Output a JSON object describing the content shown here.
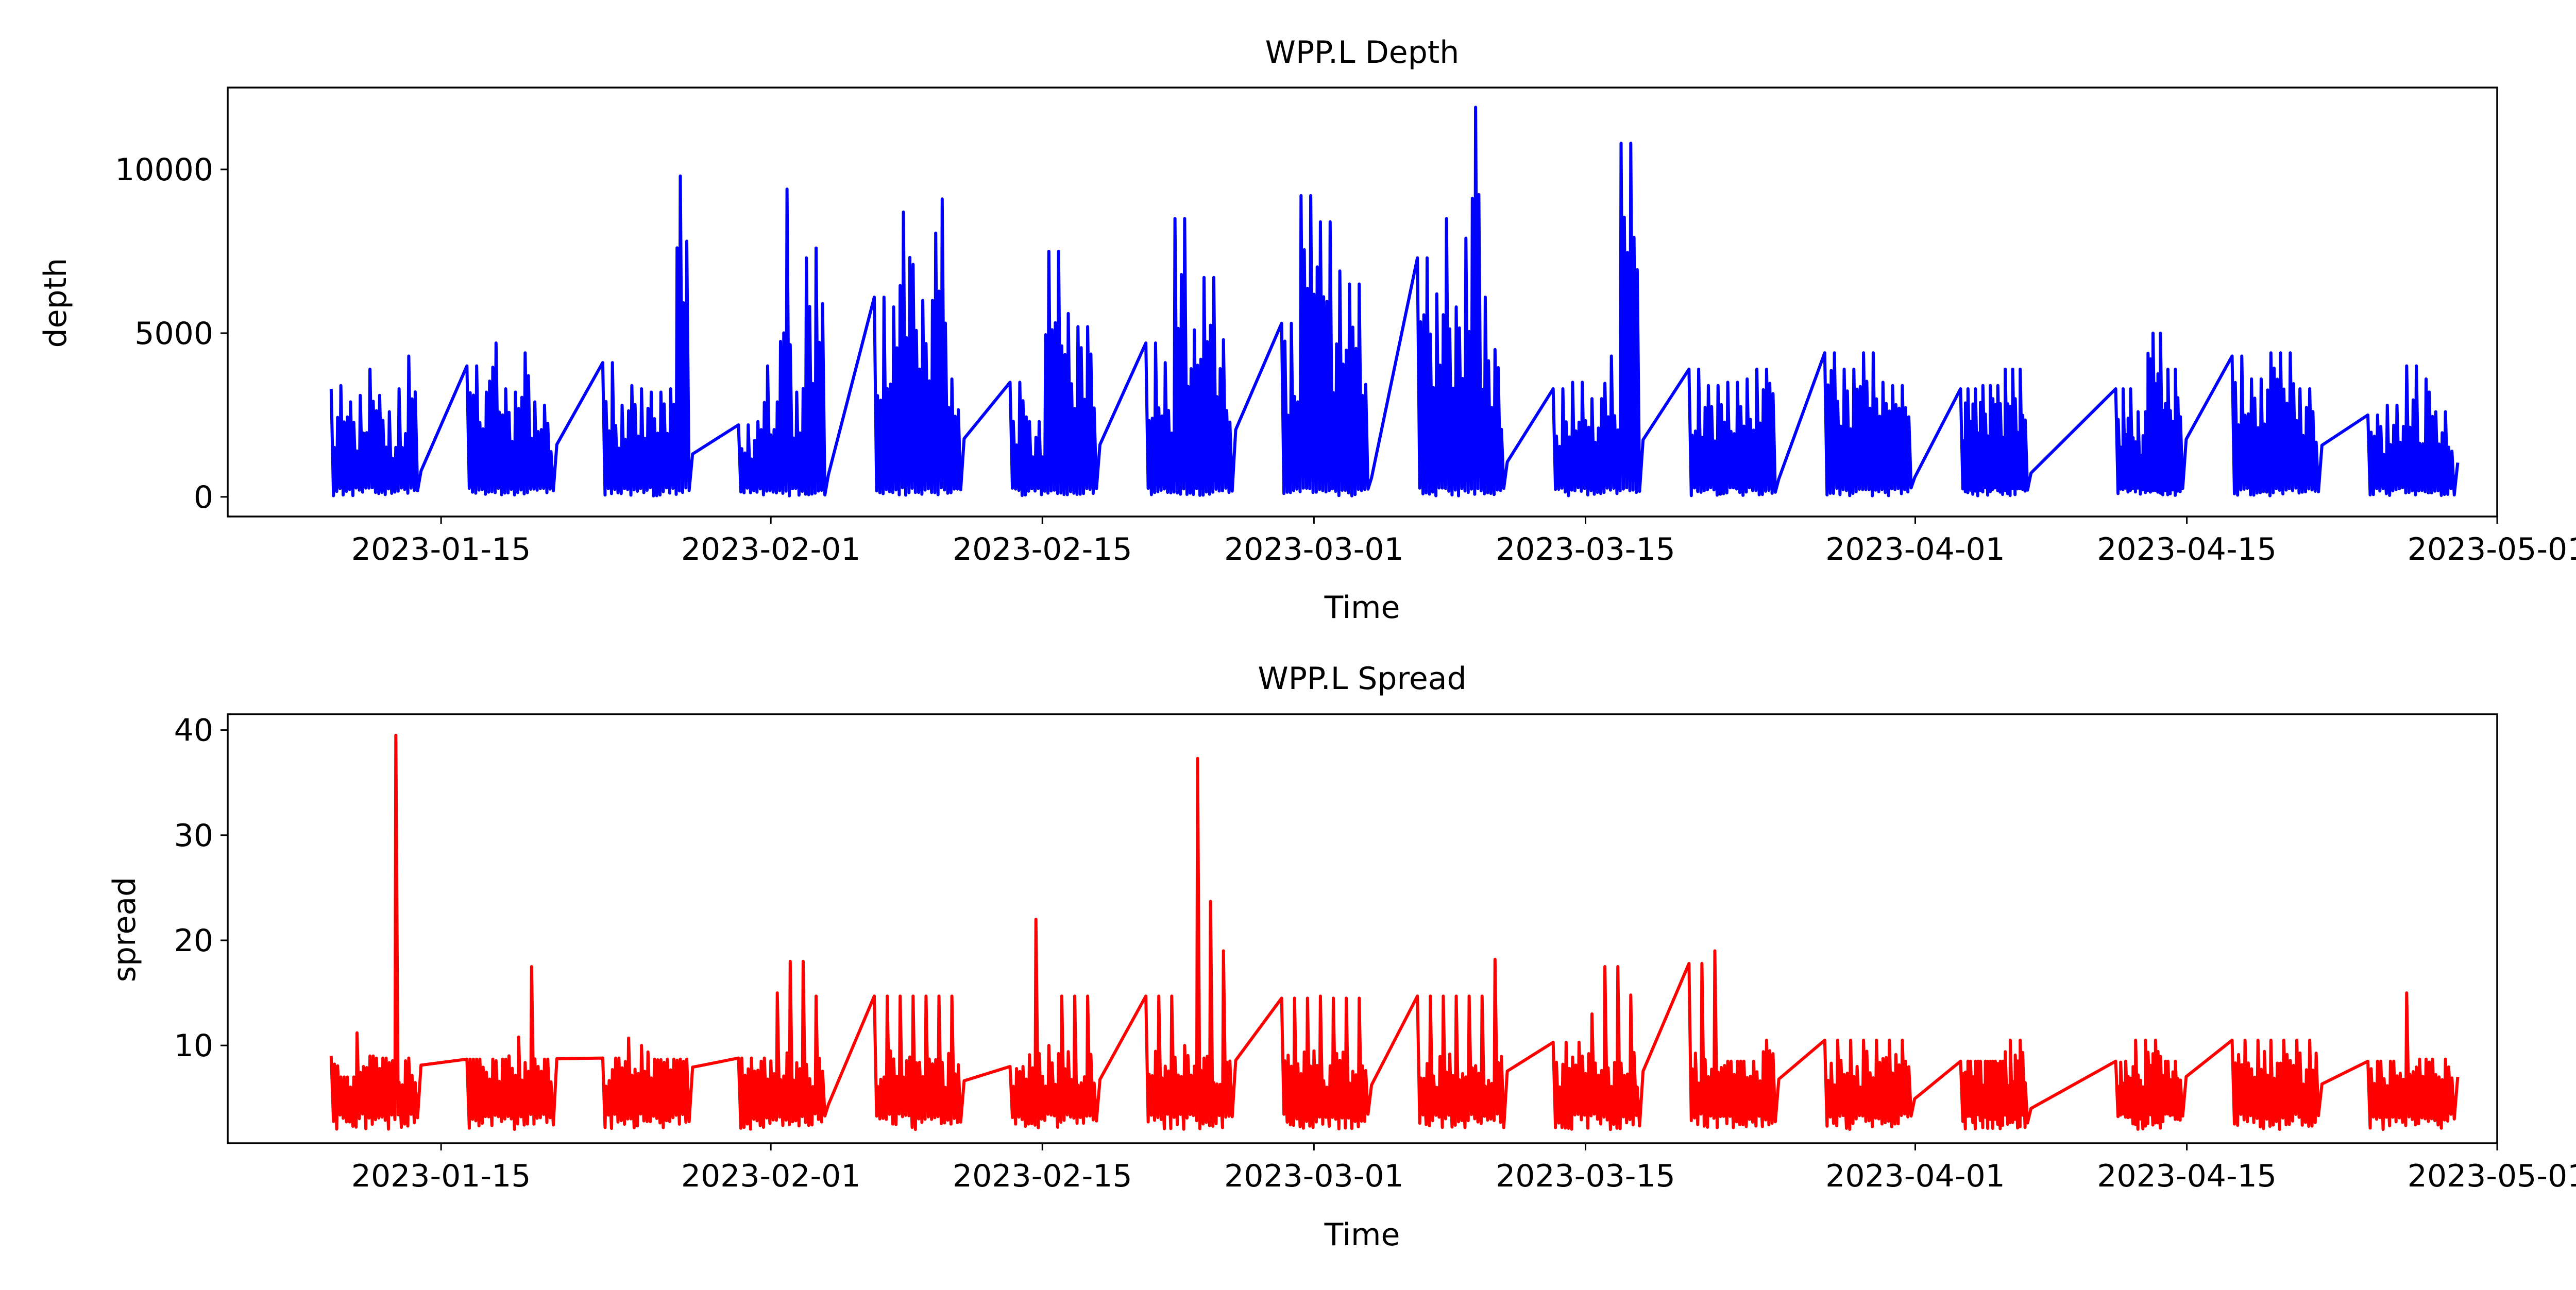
{
  "chart_data": [
    {
      "type": "line",
      "title": "WPP.L Depth",
      "xlabel": "Time",
      "ylabel": "depth",
      "color": "#0000ff",
      "xlim": [
        "2023-01-04",
        "2023-05-01"
      ],
      "ylim": [
        -600,
        12500
      ],
      "x_ticks": [
        "2023-01-15",
        "2023-02-01",
        "2023-02-15",
        "2023-03-01",
        "2023-03-15",
        "2023-04-01",
        "2023-04-15",
        "2023-05-01"
      ],
      "y_ticks": [
        0,
        5000,
        10000
      ],
      "series": [
        {
          "bursts": [
            {
              "start": "2023-01-09",
              "end": "2023-01-13",
              "peaks": [
                3300,
                3400,
                2900,
                3100,
                3900,
                3100,
                2600,
                3300,
                4300
              ]
            },
            {
              "start": "2023-01-16",
              "end": "2023-01-20",
              "peaks": [
                4000,
                3200,
                4700,
                3300,
                3200,
                4400,
                2900,
                2800
              ]
            },
            {
              "start": "2023-01-23",
              "end": "2023-01-27",
              "peaks": [
                4100,
                2800,
                3400,
                3300,
                3200,
                3300,
                9800
              ]
            },
            {
              "start": "2023-01-30",
              "end": "2023-02-03",
              "peaks": [
                2200,
                2300,
                4000,
                2900,
                9400,
                3200,
                7300,
                7600
              ]
            },
            {
              "start": "2023-02-06",
              "end": "2023-02-10",
              "peaks": [
                6100,
                5800,
                8700,
                7100,
                6000,
                9100,
                3600
              ]
            },
            {
              "start": "2023-02-13",
              "end": "2023-02-17",
              "peaks": [
                3500,
                2300,
                7500,
                5600,
                5200
              ]
            },
            {
              "start": "2023-02-20",
              "end": "2023-02-24",
              "peaks": [
                4700,
                4100,
                8500,
                5100,
                6700,
                4800
              ]
            },
            {
              "start": "2023-02-27",
              "end": "2023-03-03",
              "peaks": [
                5300,
                9200,
                8400,
                6900,
                6500
              ]
            },
            {
              "start": "2023-03-06",
              "end": "2023-03-10",
              "peaks": [
                7300,
                6200,
                8500,
                5800,
                7900,
                11900,
                6100,
                4500
              ]
            },
            {
              "start": "2023-03-13",
              "end": "2023-03-17",
              "peaks": [
                3300,
                3500,
                3000,
                4300,
                10800
              ]
            },
            {
              "start": "2023-03-20",
              "end": "2023-03-24",
              "peaks": [
                3900,
                3400,
                3500,
                3600,
                3900
              ]
            },
            {
              "start": "2023-03-27",
              "end": "2023-03-31",
              "peaks": [
                4400,
                3900,
                4400,
                3500,
                3400
              ]
            },
            {
              "start": "2023-04-03",
              "end": "2023-04-06",
              "peaks": [
                3300,
                3400,
                3900
              ]
            },
            {
              "start": "2023-04-11",
              "end": "2023-04-14",
              "peaks": [
                3300,
                2600,
                5000,
                3900
              ]
            },
            {
              "start": "2023-04-17",
              "end": "2023-04-21",
              "peaks": [
                4300,
                3600,
                4400,
                4400,
                3300
              ]
            },
            {
              "start": "2023-04-24",
              "end": "2023-04-28",
              "peaks": [
                2500,
                2800,
                4000,
                3600,
                2600
              ]
            }
          ]
        }
      ]
    },
    {
      "type": "line",
      "title": "WPP.L Spread",
      "xlabel": "Time",
      "ylabel": "spread",
      "color": "#ff0000",
      "xlim": [
        "2023-01-04",
        "2023-05-01"
      ],
      "ylim": [
        0.7,
        41.5
      ],
      "x_ticks": [
        "2023-01-15",
        "2023-02-01",
        "2023-02-15",
        "2023-03-01",
        "2023-03-15",
        "2023-04-01",
        "2023-04-15",
        "2023-05-01"
      ],
      "y_ticks": [
        10,
        20,
        30,
        40
      ],
      "series": [
        {
          "bursts": [
            {
              "start": "2023-01-09",
              "end": "2023-01-13",
              "peaks": [
                9,
                7,
                11.2,
                9,
                8.8,
                39.5,
                8.8
              ]
            },
            {
              "start": "2023-01-16",
              "end": "2023-01-20",
              "peaks": [
                8.7,
                8.7,
                8.7,
                10.8,
                17.5,
                8.7
              ]
            },
            {
              "start": "2023-01-23",
              "end": "2023-01-27",
              "peaks": [
                8.8,
                10.7,
                10,
                8.7,
                8.7
              ]
            },
            {
              "start": "2023-01-30",
              "end": "2023-02-03",
              "peaks": [
                8.8,
                8.8,
                15,
                18,
                14.7
              ]
            },
            {
              "start": "2023-02-06",
              "end": "2023-02-10",
              "peaks": [
                14.7,
                14.7,
                14.7,
                14.7,
                14.7,
                14.7
              ]
            },
            {
              "start": "2023-02-13",
              "end": "2023-02-17",
              "peaks": [
                8,
                22,
                10,
                14.7,
                14.7
              ]
            },
            {
              "start": "2023-02-20",
              "end": "2023-02-24",
              "peaks": [
                14.7,
                14.7,
                10,
                37.3,
                23.7,
                19
              ]
            },
            {
              "start": "2023-02-27",
              "end": "2023-03-03",
              "peaks": [
                14.5,
                14.5,
                14.7,
                14.5,
                14.5
              ]
            },
            {
              "start": "2023-03-06",
              "end": "2023-03-10",
              "peaks": [
                14.7,
                14.7,
                14.7,
                14.7,
                18.2
              ]
            },
            {
              "start": "2023-03-13",
              "end": "2023-03-17",
              "peaks": [
                10.3,
                10.3,
                13,
                17.5,
                14.8
              ]
            },
            {
              "start": "2023-03-20",
              "end": "2023-03-24",
              "peaks": [
                17.8,
                19,
                8.5,
                8.5,
                10.5
              ]
            },
            {
              "start": "2023-03-27",
              "end": "2023-03-31",
              "peaks": [
                10.5,
                10.5,
                10.5,
                10.5
              ]
            },
            {
              "start": "2023-04-03",
              "end": "2023-04-06",
              "peaks": [
                8.5,
                8.5,
                10.5
              ]
            },
            {
              "start": "2023-04-11",
              "end": "2023-04-14",
              "peaks": [
                8.5,
                10.5,
                10.5,
                8.5
              ]
            },
            {
              "start": "2023-04-17",
              "end": "2023-04-21",
              "peaks": [
                10.5,
                10.5,
                10.5,
                10.5,
                10.5
              ]
            },
            {
              "start": "2023-04-24",
              "end": "2023-04-28",
              "peaks": [
                8.5,
                8.5,
                15,
                8.7,
                8.7
              ]
            }
          ]
        }
      ]
    }
  ]
}
